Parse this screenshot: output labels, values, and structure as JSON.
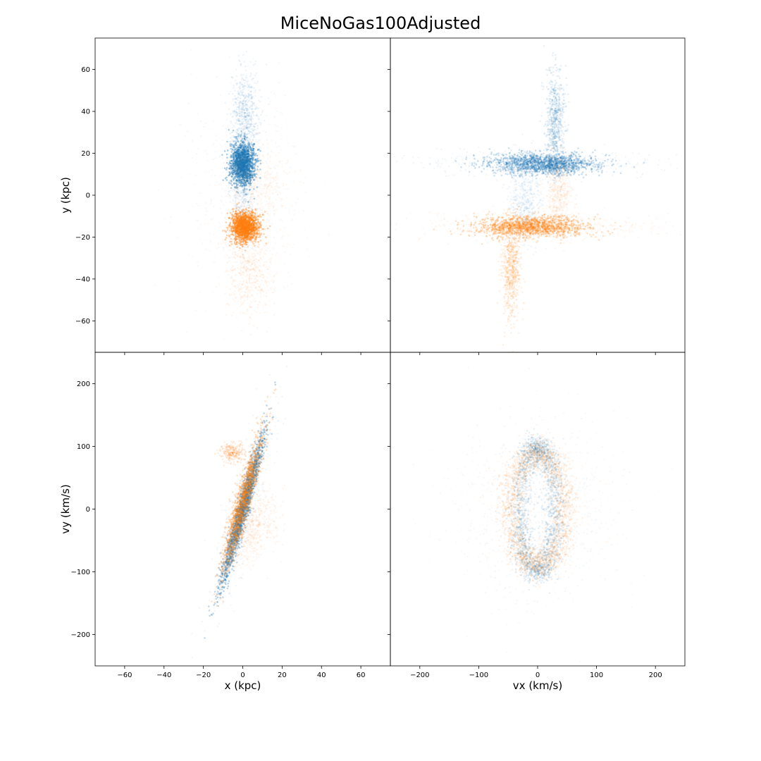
{
  "figure": {
    "title": "MiceNoGas100Adjusted"
  },
  "colors": {
    "series_1": "#1f77b4",
    "series_2": "#ff7f0e"
  },
  "chart_data": [
    {
      "type": "scatter",
      "panel": "top-left",
      "xlabel": "",
      "ylabel": "y (kpc)",
      "xlim": [
        -75,
        75
      ],
      "ylim": [
        -75,
        75
      ],
      "xticks": [
        -60,
        -40,
        -20,
        0,
        20,
        40,
        60
      ],
      "yticks": [
        -60,
        -40,
        -20,
        0,
        20,
        40,
        60
      ],
      "x_tick_labels_shown": false,
      "y_tick_labels_shown": true,
      "grid": false,
      "series": [
        {
          "color": "series_1",
          "clusters": [
            {
              "cx": 0,
              "cy": 15,
              "sx": 3,
              "sy": 5,
              "rot": 0,
              "n": 1500,
              "a": 0.35
            },
            {
              "cx": 1,
              "cy": 38,
              "sx": 3.5,
              "sy": 12,
              "rot": 0,
              "n": 700,
              "a": 0.07
            },
            {
              "cx": 0,
              "cy": -5,
              "sx": 3,
              "sy": 10,
              "rot": 0,
              "n": 400,
              "a": 0.06
            },
            {
              "cx": 0,
              "cy": 10,
              "sx": 14,
              "sy": 28,
              "rot": 0,
              "n": 250,
              "a": 0.04
            }
          ]
        },
        {
          "color": "series_2",
          "clusters": [
            {
              "cx": 1,
              "cy": -15,
              "sx": 3.5,
              "sy": 3.5,
              "rot": 0,
              "n": 1400,
              "a": 0.35
            },
            {
              "cx": 3,
              "cy": -35,
              "sx": 6,
              "sy": 12,
              "rot": 0,
              "n": 600,
              "a": 0.06
            },
            {
              "cx": 8,
              "cy": 5,
              "sx": 8,
              "sy": 10,
              "rot": 0,
              "n": 450,
              "a": 0.05
            },
            {
              "cx": 0,
              "cy": -15,
              "sx": 16,
              "sy": 22,
              "rot": 0,
              "n": 250,
              "a": 0.04
            }
          ]
        }
      ]
    },
    {
      "type": "scatter",
      "panel": "top-right",
      "xlabel": "",
      "ylabel": "",
      "xlim": [
        -250,
        250
      ],
      "ylim": [
        -75,
        75
      ],
      "xticks": [
        -200,
        -100,
        0,
        100,
        200
      ],
      "yticks": [
        -60,
        -40,
        -20,
        0,
        20,
        40,
        60
      ],
      "x_tick_labels_shown": false,
      "y_tick_labels_shown": false,
      "grid": false,
      "series": [
        {
          "color": "series_1",
          "clusters": [
            {
              "cx": 10,
              "cy": 15,
              "sx": 45,
              "sy": 2.5,
              "rot": 0,
              "n": 1500,
              "a": 0.22
            },
            {
              "cx": 30,
              "cy": 35,
              "sx": 8,
              "sy": 12,
              "rot": 0,
              "n": 700,
              "a": 0.1
            },
            {
              "cx": -20,
              "cy": -2,
              "sx": 14,
              "sy": 10,
              "rot": 0,
              "n": 500,
              "a": 0.06
            },
            {
              "cx": 0,
              "cy": 15,
              "sx": 110,
              "sy": 3,
              "rot": 0,
              "n": 400,
              "a": 0.05
            }
          ]
        },
        {
          "color": "series_2",
          "clusters": [
            {
              "cx": -10,
              "cy": -15,
              "sx": 45,
              "sy": 2.5,
              "rot": 0,
              "n": 1500,
              "a": 0.22
            },
            {
              "cx": -45,
              "cy": -35,
              "sx": 8,
              "sy": 12,
              "rot": 0,
              "n": 700,
              "a": 0.1
            },
            {
              "cx": 35,
              "cy": 0,
              "sx": 12,
              "sy": 10,
              "rot": 0,
              "n": 500,
              "a": 0.06
            },
            {
              "cx": 0,
              "cy": -15,
              "sx": 110,
              "sy": 3,
              "rot": 0,
              "n": 400,
              "a": 0.05
            }
          ]
        }
      ]
    },
    {
      "type": "scatter",
      "panel": "bottom-left",
      "xlabel": "x (kpc)",
      "ylabel": "vy (km/s)",
      "xlim": [
        -75,
        75
      ],
      "ylim": [
        -250,
        250
      ],
      "xticks": [
        -60,
        -40,
        -20,
        0,
        20,
        40,
        60
      ],
      "yticks": [
        -200,
        -100,
        0,
        100,
        200
      ],
      "x_tick_labels_shown": true,
      "y_tick_labels_shown": true,
      "grid": false,
      "series": [
        {
          "color": "series_1",
          "clusters": [
            {
              "cx": 0,
              "cy": 0,
              "sx": 1.5,
              "sy": 60,
              "rot": -5,
              "n": 1800,
              "a": 0.28
            },
            {
              "cx": 0,
              "cy": 0,
              "sx": 4,
              "sy": 80,
              "rot": -5,
              "n": 500,
              "a": 0.05
            }
          ]
        },
        {
          "color": "series_2",
          "clusters": [
            {
              "cx": 0,
              "cy": 10,
              "sx": 2,
              "sy": 55,
              "rot": -5,
              "n": 1500,
              "a": 0.22
            },
            {
              "cx": 5,
              "cy": -30,
              "sx": 6,
              "sy": 30,
              "rot": -5,
              "n": 600,
              "a": 0.06
            },
            {
              "cx": -5,
              "cy": 90,
              "sx": 3,
              "sy": 8,
              "rot": 0,
              "n": 250,
              "a": 0.12
            }
          ]
        }
      ]
    },
    {
      "type": "scatter",
      "panel": "bottom-right",
      "xlabel": "vx (km/s)",
      "ylabel": "",
      "xlim": [
        -250,
        250
      ],
      "ylim": [
        -250,
        250
      ],
      "xticks": [
        -200,
        -100,
        0,
        100,
        200
      ],
      "yticks": [
        -200,
        -100,
        0,
        100,
        200
      ],
      "x_tick_labels_shown": true,
      "y_tick_labels_shown": false,
      "grid": false,
      "series": [
        {
          "color": "series_1",
          "ring": {
            "cx": 0,
            "cy": 0,
            "rx": 30,
            "ry": 100,
            "jitter": 10,
            "n": 2200,
            "a": 0.1,
            "rot": 0
          },
          "clusters": [
            {
              "cx": 0,
              "cy": 0,
              "sx": 60,
              "sy": 70,
              "rot": 0,
              "n": 500,
              "a": 0.04
            }
          ]
        },
        {
          "color": "series_2",
          "ring": {
            "cx": 0,
            "cy": 0,
            "rx": 45,
            "ry": 90,
            "jitter": 12,
            "n": 2200,
            "a": 0.09,
            "rot": 0
          },
          "clusters": [
            {
              "cx": 0,
              "cy": 0,
              "sx": 75,
              "sy": 70,
              "rot": 0,
              "n": 500,
              "a": 0.04
            }
          ]
        }
      ]
    }
  ]
}
